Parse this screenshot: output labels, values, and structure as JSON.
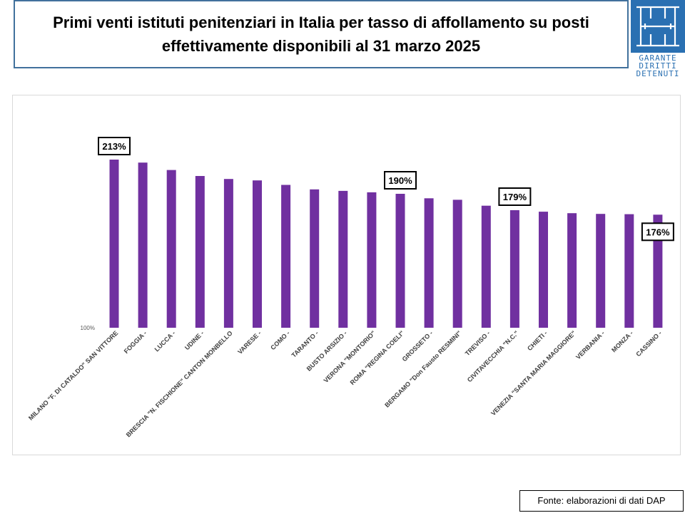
{
  "header": {
    "title_line1": "Primi venti istituti penitenziari in Italia per tasso di affollamento su posti",
    "title_line2": "effettivamente disponibili al 31 marzo 2025"
  },
  "logo": {
    "line1": "GARANTE",
    "line2": "DIRITTI",
    "line3": "DETENUTI",
    "color": "#2a70b2"
  },
  "footer": {
    "source": "Fonte: elaborazioni di dati DAP"
  },
  "chart_data": {
    "type": "bar",
    "title": "",
    "xlabel": "",
    "ylabel": "",
    "baseline_label": "100%",
    "ylim": [
      100,
      220
    ],
    "bar_color": "#7030a0",
    "categories": [
      "MILANO \"F. DI CATALDO\" SAN VITTORE",
      "FOGGIA -",
      "LUCCA -",
      "UDINE -",
      "BRESCIA \"N. FISCHIONE\" CANTON MONBELLO",
      "VARESE -",
      "COMO -",
      "TARANTO -",
      "BUSTO ARSIZIO -",
      "VERONA \"MONTORIO\"",
      "ROMA \"REGINA COELI\"",
      "GROSSETO -",
      "BERGAMO \"Don Fausto RESMINI\"",
      "TREVISO -",
      "CIVITAVECCHIA \"N.C.\"",
      "CHIETI -",
      "VENEZIA \"SANTA MARIA MAGGIORE\"",
      "VERBANIA -",
      "MONZA -",
      "CASSINO -"
    ],
    "values": [
      213,
      211,
      206,
      202,
      200,
      199,
      196,
      193,
      192,
      191,
      190,
      187,
      186,
      182,
      179,
      178,
      177,
      176.5,
      176.3,
      176
    ],
    "data_labels": [
      {
        "index": 0,
        "text": "213%"
      },
      {
        "index": 10,
        "text": "190%"
      },
      {
        "index": 14,
        "text": "179%"
      },
      {
        "index": 19,
        "text": "176%"
      }
    ]
  }
}
